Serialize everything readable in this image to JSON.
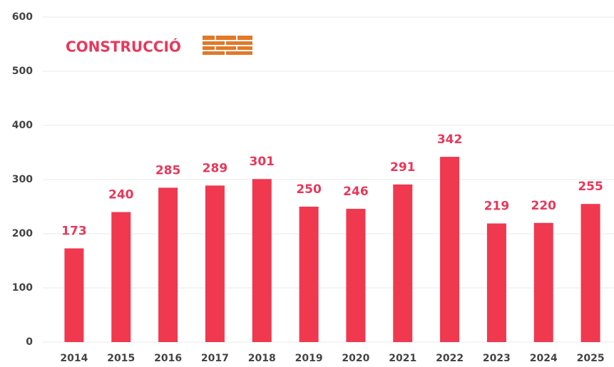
{
  "chart_data": {
    "type": "bar",
    "title": "CONSTRUCCIÓ",
    "categories": [
      "2014",
      "2015",
      "2016",
      "2017",
      "2018",
      "2019",
      "2020",
      "2021",
      "2022",
      "2023",
      "2024",
      "2025"
    ],
    "values": [
      173,
      240,
      285,
      289,
      301,
      250,
      246,
      291,
      342,
      219,
      220,
      255
    ],
    "color": "#f0384f",
    "ylim": [
      0,
      600
    ],
    "yticks": [
      0,
      100,
      200,
      300,
      400,
      500,
      600
    ],
    "grid": true
  }
}
